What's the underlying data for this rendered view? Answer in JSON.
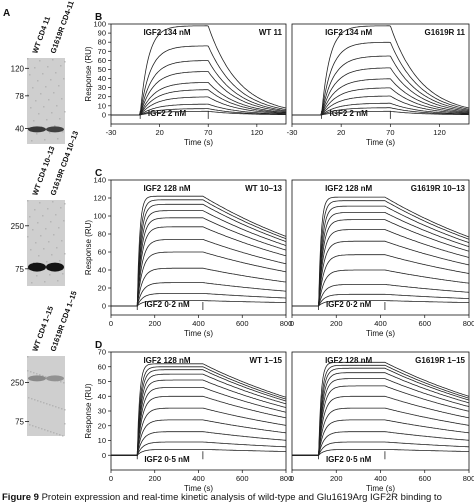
{
  "figure": {
    "caption_label": "Figure 9",
    "caption_text": "Protein expression and real-time kinetic analysis of wild-type and Glu1619Arg IGF2R binding to"
  },
  "blots": [
    {
      "panel_label": "A",
      "lanes": [
        "WT CD4 11",
        "G1619R CD4-11"
      ],
      "markers": [
        "120",
        "78",
        "40"
      ],
      "bands": [
        {
          "lane": 0,
          "intensity": 0.8
        },
        {
          "lane": 1,
          "intensity": 0.75
        }
      ]
    },
    {
      "panel_label": "",
      "lanes": [
        "WT CD4 10–13",
        "G1619R CD4 10–13"
      ],
      "markers": [
        "250",
        "75"
      ],
      "bands": [
        {
          "lane": 0,
          "intensity": 1.0
        },
        {
          "lane": 1,
          "intensity": 1.0
        }
      ]
    },
    {
      "panel_label": "",
      "lanes": [
        "WT CD4 1–15",
        "G1619R CD4 1–15"
      ],
      "markers": [
        "250",
        "75"
      ],
      "bands": [
        {
          "lane": 0,
          "intensity": 0.35
        },
        {
          "lane": 1,
          "intensity": 0.3
        }
      ]
    }
  ],
  "chart_data": [
    {
      "type": "line",
      "panel": "B",
      "title": "WT 11",
      "ylabel": "Response (RU)",
      "xlabel": "Time (s)",
      "top_label": "IGF2 134 nM",
      "bottom_label": "IGF2 2 nM",
      "xlim": [
        -30,
        150
      ],
      "ylim": [
        -10,
        100
      ],
      "xticks": [
        -30,
        20,
        70,
        120
      ],
      "yticks": [
        0,
        10,
        20,
        30,
        40,
        50,
        60,
        70,
        80,
        90,
        100
      ],
      "injection_start": 0,
      "injection_end": 70,
      "ka": 0.12,
      "kd": 0.032,
      "plateaus": [
        98,
        76,
        60,
        48,
        36,
        28,
        20,
        12,
        7,
        4
      ]
    },
    {
      "type": "line",
      "panel": "",
      "title": "G1619R 11",
      "xlabel": "Time (s)",
      "top_label": "IGF2 134 nM",
      "bottom_label": "IGF2 2 nM",
      "xlim": [
        -30,
        150
      ],
      "ylim": [
        -10,
        100
      ],
      "xticks": [
        -30,
        20,
        70,
        120
      ],
      "yticks": [],
      "injection_start": 0,
      "injection_end": 70,
      "ka": 0.12,
      "kd": 0.032,
      "plateaus": [
        98,
        80,
        65,
        52,
        40,
        30,
        21,
        13,
        8,
        4
      ]
    },
    {
      "type": "line",
      "panel": "C",
      "title": "WT 10–13",
      "ylabel": "Response (RU)",
      "xlabel": "Time (s)",
      "top_label": "IGF2 128 nM",
      "bottom_label": "IGF2 0·2 nM",
      "xlim": [
        0,
        800
      ],
      "ylim": [
        -10,
        140
      ],
      "xticks": [
        0,
        200,
        400,
        600,
        800
      ],
      "yticks": [
        0,
        20,
        40,
        60,
        80,
        100,
        120,
        140
      ],
      "injection_start": 120,
      "injection_end": 420,
      "ka": 0.09,
      "kd": 0.0012,
      "plateaus": [
        122,
        118,
        113,
        106,
        98,
        88,
        74,
        60,
        42,
        26,
        14,
        6
      ]
    },
    {
      "type": "line",
      "panel": "",
      "title": "G1619R 10–13",
      "xlabel": "Time (s)",
      "top_label": "IGF2 128 nM",
      "bottom_label": "IGF2 0·2 nM",
      "xlim": [
        0,
        800
      ],
      "ylim": [
        -10,
        140
      ],
      "xticks": [
        0,
        200,
        400,
        600,
        800
      ],
      "yticks": [],
      "injection_start": 120,
      "injection_end": 420,
      "ka": 0.09,
      "kd": 0.0012,
      "plateaus": [
        121,
        117,
        111,
        104,
        96,
        85,
        72,
        57,
        40,
        24,
        13,
        6
      ]
    },
    {
      "type": "line",
      "panel": "D",
      "title": "WT 1–15",
      "ylabel": "Response (RU)",
      "xlabel": "Time (s)",
      "top_label": "IGF2 128 nM",
      "bottom_label": "IGF2 0·5 nM",
      "xlim": [
        0,
        800
      ],
      "ylim": [
        -10,
        70
      ],
      "xticks": [
        0,
        200,
        400,
        600,
        800
      ],
      "yticks": [
        0,
        10,
        20,
        30,
        40,
        50,
        60,
        70
      ],
      "injection_start": 120,
      "injection_end": 420,
      "ka": 0.09,
      "kd": 0.0012,
      "plateaus": [
        62,
        60,
        58,
        55,
        51,
        46,
        40,
        32,
        24,
        16,
        9,
        4
      ]
    },
    {
      "type": "line",
      "panel": "",
      "title": "G1619R 1–15",
      "xlabel": "Time (s)",
      "top_label": "IGF2 128 nM",
      "bottom_label": "IGF2 0·5 nM",
      "xlim": [
        0,
        800
      ],
      "ylim": [
        -10,
        70
      ],
      "xticks": [
        0,
        200,
        400,
        600,
        800
      ],
      "yticks": [],
      "injection_start": 120,
      "injection_end": 420,
      "ka": 0.09,
      "kd": 0.0012,
      "plateaus": [
        63,
        61,
        59,
        56,
        52,
        47,
        40,
        32,
        24,
        16,
        9,
        4
      ]
    }
  ]
}
